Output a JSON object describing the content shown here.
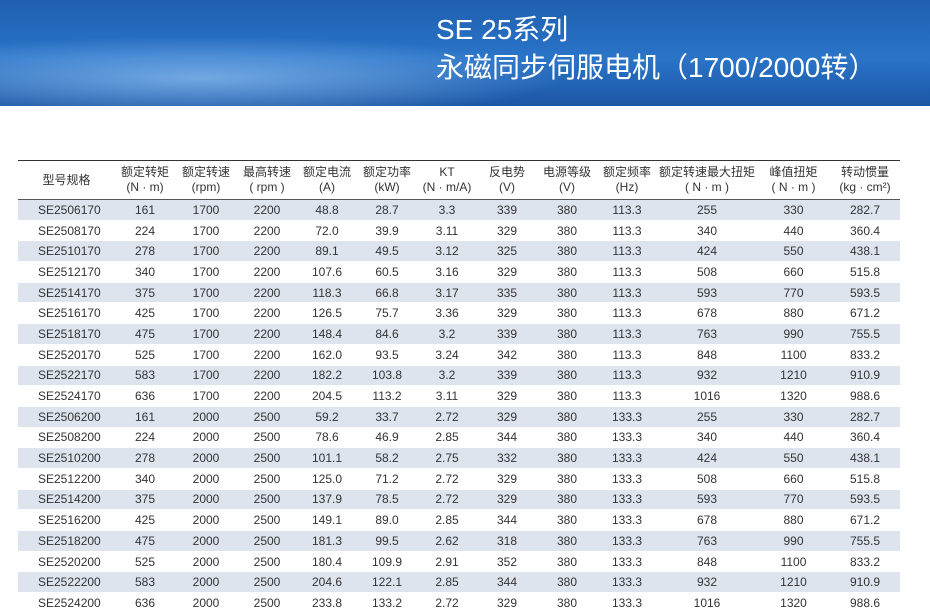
{
  "header": {
    "title": "SE 25系列",
    "subtitle": "永磁同步伺服电机（1700/2000转）"
  },
  "table": {
    "columns": [
      {
        "name": "型号规格"
      },
      {
        "name": "额定转矩",
        "unit": "(N · m)"
      },
      {
        "name": "额定转速",
        "unit": "(rpm)"
      },
      {
        "name": "最高转速",
        "unit": "( rpm )"
      },
      {
        "name": "额定电流",
        "unit": "(A)"
      },
      {
        "name": "额定功率",
        "unit": "(kW)"
      },
      {
        "name": "KT",
        "unit": "(N · m/A)"
      },
      {
        "name": "反电势",
        "unit": "(V)"
      },
      {
        "name": "电源等级",
        "unit": "(V)"
      },
      {
        "name": "额定频率",
        "unit": "(Hz)"
      },
      {
        "name": "额定转速最大扭矩",
        "unit": "( N · m )"
      },
      {
        "name": "峰值扭矩",
        "unit": "( N · m )"
      },
      {
        "name": "转动惯量",
        "unit": "(kg · cm²)"
      }
    ],
    "rows": [
      [
        "SE2506170",
        "161",
        "1700",
        "2200",
        "48.8",
        "28.7",
        "3.3",
        "339",
        "380",
        "113.3",
        "255",
        "330",
        "282.7"
      ],
      [
        "SE2508170",
        "224",
        "1700",
        "2200",
        "72.0",
        "39.9",
        "3.11",
        "329",
        "380",
        "113.3",
        "340",
        "440",
        "360.4"
      ],
      [
        "SE2510170",
        "278",
        "1700",
        "2200",
        "89.1",
        "49.5",
        "3.12",
        "325",
        "380",
        "113.3",
        "424",
        "550",
        "438.1"
      ],
      [
        "SE2512170",
        "340",
        "1700",
        "2200",
        "107.6",
        "60.5",
        "3.16",
        "329",
        "380",
        "113.3",
        "508",
        "660",
        "515.8"
      ],
      [
        "SE2514170",
        "375",
        "1700",
        "2200",
        "118.3",
        "66.8",
        "3.17",
        "335",
        "380",
        "113.3",
        "593",
        "770",
        "593.5"
      ],
      [
        "SE2516170",
        "425",
        "1700",
        "2200",
        "126.5",
        "75.7",
        "3.36",
        "329",
        "380",
        "113.3",
        "678",
        "880",
        "671.2"
      ],
      [
        "SE2518170",
        "475",
        "1700",
        "2200",
        "148.4",
        "84.6",
        "3.2",
        "339",
        "380",
        "113.3",
        "763",
        "990",
        "755.5"
      ],
      [
        "SE2520170",
        "525",
        "1700",
        "2200",
        "162.0",
        "93.5",
        "3.24",
        "342",
        "380",
        "113.3",
        "848",
        "1100",
        "833.2"
      ],
      [
        "SE2522170",
        "583",
        "1700",
        "2200",
        "182.2",
        "103.8",
        "3.2",
        "339",
        "380",
        "113.3",
        "932",
        "1210",
        "910.9"
      ],
      [
        "SE2524170",
        "636",
        "1700",
        "2200",
        "204.5",
        "113.2",
        "3.11",
        "329",
        "380",
        "113.3",
        "1016",
        "1320",
        "988.6"
      ],
      [
        "SE2506200",
        "161",
        "2000",
        "2500",
        "59.2",
        "33.7",
        "2.72",
        "329",
        "380",
        "133.3",
        "255",
        "330",
        "282.7"
      ],
      [
        "SE2508200",
        "224",
        "2000",
        "2500",
        "78.6",
        "46.9",
        "2.85",
        "344",
        "380",
        "133.3",
        "340",
        "440",
        "360.4"
      ],
      [
        "SE2510200",
        "278",
        "2000",
        "2500",
        "101.1",
        "58.2",
        "2.75",
        "332",
        "380",
        "133.3",
        "424",
        "550",
        "438.1"
      ],
      [
        "SE2512200",
        "340",
        "2000",
        "2500",
        "125.0",
        "71.2",
        "2.72",
        "329",
        "380",
        "133.3",
        "508",
        "660",
        "515.8"
      ],
      [
        "SE2514200",
        "375",
        "2000",
        "2500",
        "137.9",
        "78.5",
        "2.72",
        "329",
        "380",
        "133.3",
        "593",
        "770",
        "593.5"
      ],
      [
        "SE2516200",
        "425",
        "2000",
        "2500",
        "149.1",
        "89.0",
        "2.85",
        "344",
        "380",
        "133.3",
        "678",
        "880",
        "671.2"
      ],
      [
        "SE2518200",
        "475",
        "2000",
        "2500",
        "181.3",
        "99.5",
        "2.62",
        "318",
        "380",
        "133.3",
        "763",
        "990",
        "755.5"
      ],
      [
        "SE2520200",
        "525",
        "2000",
        "2500",
        "180.4",
        "109.9",
        "2.91",
        "352",
        "380",
        "133.3",
        "848",
        "1100",
        "833.2"
      ],
      [
        "SE2522200",
        "583",
        "2000",
        "2500",
        "204.6",
        "122.1",
        "2.85",
        "344",
        "380",
        "133.3",
        "932",
        "1210",
        "910.9"
      ],
      [
        "SE2524200",
        "636",
        "2000",
        "2500",
        "233.8",
        "133.2",
        "2.72",
        "329",
        "380",
        "133.3",
        "1016",
        "1320",
        "988.6"
      ]
    ]
  }
}
